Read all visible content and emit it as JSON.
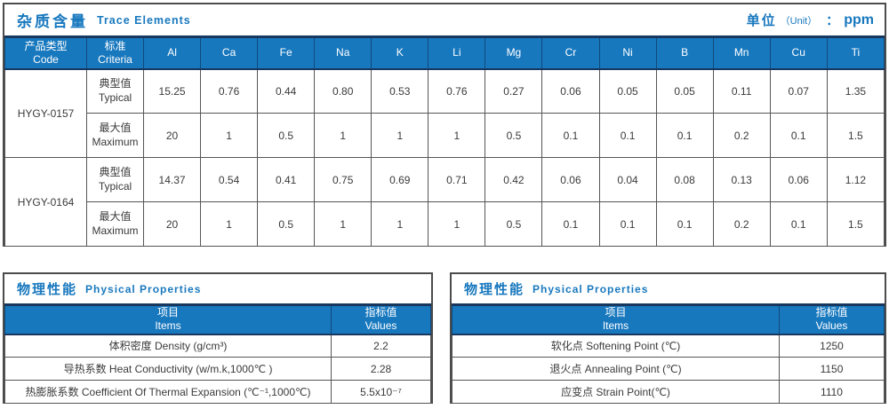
{
  "trace": {
    "title_cn": "杂质含量",
    "title_en": "Trace Elements",
    "unit_cn": "单位",
    "unit_en": "（Unit）",
    "unit_colon": "：",
    "unit_value": "ppm",
    "header": {
      "product_cn": "产品类型",
      "product_en": "Code",
      "criteria_cn": "标准",
      "criteria_en": "Criteria"
    },
    "elements": [
      "Al",
      "Ca",
      "Fe",
      "Na",
      "K",
      "Li",
      "Mg",
      "Cr",
      "Ni",
      "B",
      "Mn",
      "Cu",
      "Ti"
    ],
    "typical_cn": "典型值",
    "typical_en": "Typical",
    "max_cn": "最大值",
    "max_en": "Maximum",
    "rows": [
      {
        "code": "HYGY-0157",
        "typical": [
          "15.25",
          "0.76",
          "0.44",
          "0.80",
          "0.53",
          "0.76",
          "0.27",
          "0.06",
          "0.05",
          "0.05",
          "0.11",
          "0.07",
          "1.35"
        ],
        "maximum": [
          "20",
          "1",
          "0.5",
          "1",
          "1",
          "1",
          "0.5",
          "0.1",
          "0.1",
          "0.1",
          "0.2",
          "0.1",
          "1.5"
        ]
      },
      {
        "code": "HYGY-0164",
        "typical": [
          "14.37",
          "0.54",
          "0.41",
          "0.75",
          "0.69",
          "0.71",
          "0.42",
          "0.06",
          "0.04",
          "0.08",
          "0.13",
          "0.06",
          "1.12"
        ],
        "maximum": [
          "20",
          "1",
          "0.5",
          "1",
          "1",
          "1",
          "0.5",
          "0.1",
          "0.1",
          "0.1",
          "0.2",
          "0.1",
          "1.5"
        ]
      }
    ]
  },
  "physical_left": {
    "title_cn": "物理性能",
    "title_en": "Physical Properties",
    "items_cn": "项目",
    "items_en": "Items",
    "values_cn": "指标值",
    "values_en": "Values",
    "rows": [
      {
        "item": "体积密度 Density (g/cm³)",
        "value": "2.2"
      },
      {
        "item": "导热系数 Heat Conductivity (w/m.k,1000℃ )",
        "value": "2.28"
      },
      {
        "item": "热膨胀系数 Coefficient Of Thermal Expansion (℃⁻¹,1000℃)",
        "value": "5.5x10⁻⁷"
      }
    ]
  },
  "physical_right": {
    "title_cn": "物理性能",
    "title_en": "Physical Properties",
    "items_cn": "项目",
    "items_en": "Items",
    "values_cn": "指标值",
    "values_en": "Values",
    "rows": [
      {
        "item": "软化点 Softening Point (℃)",
        "value": "1250"
      },
      {
        "item": "退火点 Annealing Point (℃)",
        "value": "1150"
      },
      {
        "item": "应变点 Strain Point(℃)",
        "value": "1110"
      }
    ]
  }
}
